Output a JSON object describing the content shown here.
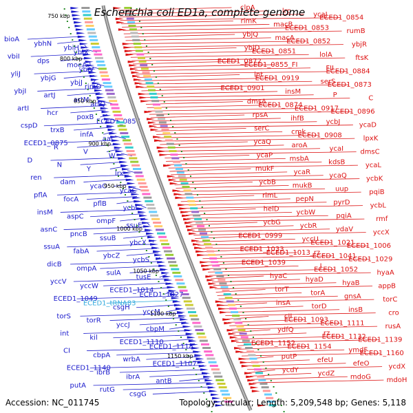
{
  "title": "Escherichia coli ED1a, complete genome",
  "footer": {
    "accession": "Accession: NC_011745",
    "topology": "Topology: circular; Length: 5,209,548 bp; Genes: 5,118"
  },
  "colors": {
    "left_strand": "#1a1acc",
    "right_strand": "#dd1111",
    "rna": "#33aadd",
    "backbone": "#888888",
    "tick": "#228822"
  },
  "scale": {
    "first_kbp": 750,
    "last_kbp": 1150,
    "step_kbp": 50,
    "labels": [
      "750 kbp",
      "800 kbp",
      "850 kbp",
      "900 kbp",
      "950 kbp",
      "1000 kbp",
      "1050 kbp",
      "1100 kbp",
      "1150 kbp"
    ]
  },
  "left_genes": [
    "bioA",
    "ybhN",
    "ybiH",
    "ybiX",
    "vbiI",
    "dps",
    "moeA",
    "ybiV",
    "yliJ",
    "ybjG",
    "ybjJ",
    "rimO",
    "ybjI",
    "artJ",
    "artM",
    "artQ",
    "artI",
    "hcr",
    "poxB",
    "ECED1_0857",
    "cspD",
    "trxB",
    "infA",
    "aat",
    "ECED1_0875",
    "R",
    "V",
    "W",
    "D",
    "N",
    "Y",
    "lrx",
    "ren",
    "dam",
    "ycaO",
    "ycaC",
    "pflA",
    "focA",
    "pflB",
    "ycbC",
    "insM",
    "aspC",
    "ompF",
    "ssuE",
    "asnC",
    "pncB",
    "ssuB",
    "ybcX",
    "ssuA",
    "fabA",
    "ybcZ",
    "ycbS",
    "dicB",
    "ompA",
    "sulA",
    "tusE",
    "yccV",
    "yccW",
    "ECED1_1014",
    "ECED1_1027",
    "ECED1_1049",
    "ECED1_tRNA83",
    "csgH",
    "yccM",
    "torS",
    "torR",
    "yccJ",
    "cbpM",
    "int",
    "kil",
    "ECED1_1110",
    "ECED1_1118",
    "CI",
    "cbpA",
    "wrbA",
    "ECED1_1107",
    "ECED1_1140",
    "ibrB",
    "ibrA",
    "antB",
    "putA",
    "rutG",
    "csgG"
  ],
  "right_genes": [
    "clpA",
    "lrp",
    "ycaJ",
    "ECED1_0854",
    "rimK",
    "macB",
    "ECED1_0853",
    "rumB",
    "ybjQ",
    "macA",
    "ECED1_0852",
    "ybjR",
    "ybjD",
    "ECED1_0851",
    "lolA",
    "ftsK",
    "ECED1_0872",
    "ECED1_0855_FI",
    "FII",
    "ECED1_0884",
    "int",
    "ECED1_0919",
    "serS",
    "ECED1_0873",
    "ECED1_0901",
    "insM",
    "P",
    "C",
    "dmsA",
    "ECED1_0874",
    "ECED1_0917",
    "ECED1_0896",
    "rpsA",
    "ihfB",
    "ycbJ",
    "ycaD",
    "serC",
    "cmk",
    "ECED1_0908",
    "lpxK",
    "ycaQ",
    "aroA",
    "ycaI",
    "dmsC",
    "ycaP",
    "msbA",
    "kdsB",
    "ycaL",
    "mukF",
    "ycaR",
    "ycaQ",
    "ycbK",
    "ycbB",
    "mukB",
    "uup",
    "pqiB",
    "rlmL",
    "pepN",
    "pyrD",
    "ycbL",
    "helD",
    "ycbW",
    "pqiA",
    "rmf",
    "ycbG",
    "ycbR",
    "ydaV",
    "yccX",
    "ECED1_0999",
    "yccU",
    "ECED1_1021",
    "ECED1_1006",
    "ECED1_1033",
    "ECED1_1013_rz",
    "ECED1_1041",
    "ECED1_1029",
    "ECED1_1039",
    "J",
    "ECED1_1052",
    "hyaA",
    "hyaC",
    "hyaD",
    "hyaB",
    "appB",
    "torT",
    "torA",
    "gnsA",
    "torC",
    "insA",
    "torD",
    "insB",
    "cro",
    "cII",
    "ECED1_1093",
    "ECED1_1111",
    "rusA",
    "ydfQ",
    "rz",
    "ECED1_1132",
    "ECED1_1139",
    "ECED1_1152",
    "ECED1_1154",
    "ymdF",
    "ECED1_1160",
    "putP",
    "efeU",
    "efeO",
    "ycdX",
    "ycdY",
    "ycdZ",
    "mdoG",
    "mdoH"
  ]
}
